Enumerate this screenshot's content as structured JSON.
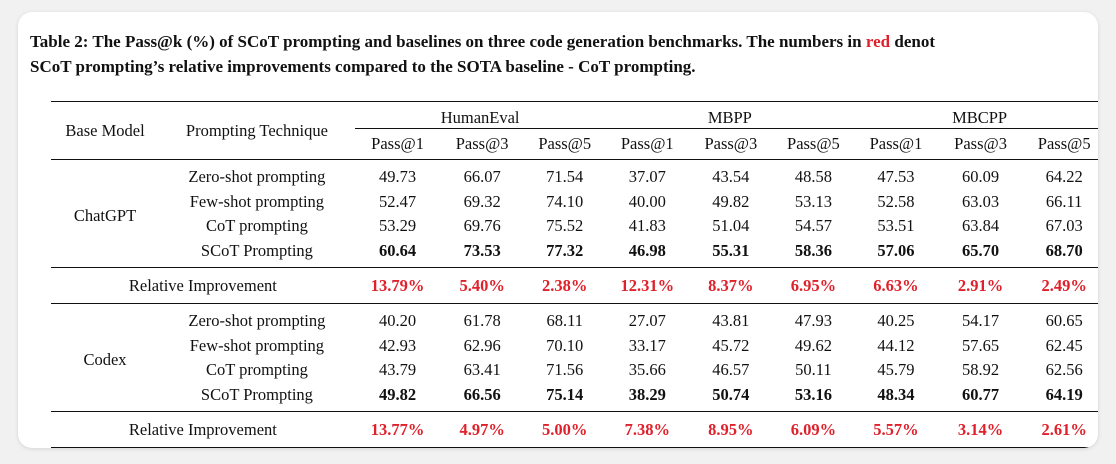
{
  "caption": {
    "part1": "Table 2: The Pass@k (%) of SCoT prompting and baselines on three code generation benchmarks. The numbers in ",
    "red_word": "red",
    "part2": " denot",
    "line2": "SCoT prompting’s relative improvements compared to the SOTA baseline - CoT prompting."
  },
  "header": {
    "base_model": "Base Model",
    "prompting_technique": "Prompting Technique",
    "groups": [
      "HumanEval",
      "MBPP",
      "MBCPP"
    ],
    "metrics": [
      "Pass@1",
      "Pass@3",
      "Pass@5",
      "Pass@1",
      "Pass@3",
      "Pass@5",
      "Pass@1",
      "Pass@3",
      "Pass@5"
    ]
  },
  "colors": {
    "highlight": "#e0202a"
  },
  "blocks": [
    {
      "model": "ChatGPT",
      "rows": [
        {
          "technique": "Zero-shot prompting",
          "values": [
            "49.73",
            "66.07",
            "71.54",
            "37.07",
            "43.54",
            "48.58",
            "47.53",
            "60.09",
            "64.22"
          ]
        },
        {
          "technique": "Few-shot prompting",
          "values": [
            "52.47",
            "69.32",
            "74.10",
            "40.00",
            "49.82",
            "53.13",
            "52.58",
            "63.03",
            "66.11"
          ]
        },
        {
          "technique": "CoT prompting",
          "values": [
            "53.29",
            "69.76",
            "75.52",
            "41.83",
            "51.04",
            "54.57",
            "53.51",
            "63.84",
            "67.03"
          ]
        },
        {
          "technique": "SCoT Prompting",
          "values": [
            "60.64",
            "73.53",
            "77.32",
            "46.98",
            "55.31",
            "58.36",
            "57.06",
            "65.70",
            "68.70"
          ]
        }
      ],
      "relative_improvement": {
        "label": "Relative Improvement",
        "values": [
          "13.79%",
          "5.40%",
          "2.38%",
          "12.31%",
          "8.37%",
          "6.95%",
          "6.63%",
          "2.91%",
          "2.49%"
        ]
      }
    },
    {
      "model": "Codex",
      "rows": [
        {
          "technique": "Zero-shot prompting",
          "values": [
            "40.20",
            "61.78",
            "68.11",
            "27.07",
            "43.81",
            "47.93",
            "40.25",
            "54.17",
            "60.65"
          ]
        },
        {
          "technique": "Few-shot prompting",
          "values": [
            "42.93",
            "62.96",
            "70.10",
            "33.17",
            "45.72",
            "49.62",
            "44.12",
            "57.65",
            "62.45"
          ]
        },
        {
          "technique": "CoT prompting",
          "values": [
            "43.79",
            "63.41",
            "71.56",
            "35.66",
            "46.57",
            "50.11",
            "45.79",
            "58.92",
            "62.56"
          ]
        },
        {
          "technique": "SCoT Prompting",
          "values": [
            "49.82",
            "66.56",
            "75.14",
            "38.29",
            "50.74",
            "53.16",
            "48.34",
            "60.77",
            "64.19"
          ]
        }
      ],
      "relative_improvement": {
        "label": "Relative Improvement",
        "values": [
          "13.77%",
          "4.97%",
          "5.00%",
          "7.38%",
          "8.95%",
          "6.09%",
          "5.57%",
          "3.14%",
          "2.61%"
        ]
      }
    }
  ]
}
